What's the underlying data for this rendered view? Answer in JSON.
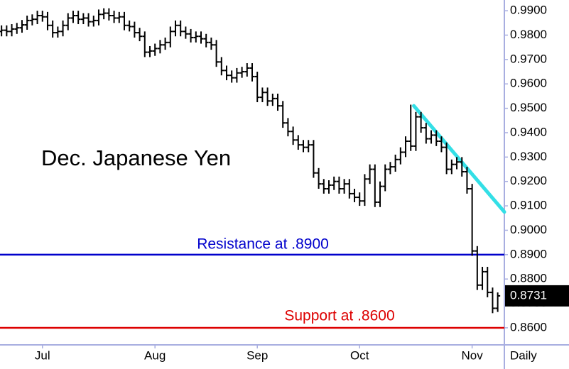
{
  "chart_data": {
    "type": "ohlc",
    "title": "Dec. Japanese Yen",
    "color": "#000000",
    "x": [
      0,
      1,
      2,
      3,
      4,
      5,
      6,
      7,
      8,
      9,
      10,
      11,
      12,
      13,
      14,
      15,
      16,
      17,
      18,
      19,
      20,
      21,
      22,
      23,
      24,
      25,
      26,
      27,
      28,
      29,
      30,
      31,
      32,
      33,
      34,
      35,
      36,
      37,
      38,
      39,
      40,
      41,
      42,
      43,
      44,
      45,
      46,
      47,
      48,
      49,
      50,
      51,
      52,
      53,
      54,
      55,
      56,
      57,
      58,
      59,
      60,
      61,
      62,
      63,
      64,
      65,
      66,
      67,
      68,
      69,
      70,
      71,
      72,
      73,
      74,
      75,
      76,
      77,
      78,
      79,
      80,
      81,
      82,
      83,
      84,
      85,
      86,
      87,
      88,
      89,
      90,
      91,
      92,
      93,
      94,
      95,
      96,
      97
    ],
    "open": [
      0.9815,
      0.982,
      0.9815,
      0.9825,
      0.983,
      0.9842,
      0.986,
      0.9865,
      0.988,
      0.9875,
      0.984,
      0.981,
      0.9815,
      0.984,
      0.987,
      0.988,
      0.9865,
      0.987,
      0.9855,
      0.986,
      0.9885,
      0.989,
      0.988,
      0.987,
      0.9875,
      0.984,
      0.9835,
      0.981,
      0.9795,
      0.973,
      0.9735,
      0.9745,
      0.976,
      0.977,
      0.9815,
      0.984,
      0.9815,
      0.9805,
      0.979,
      0.9795,
      0.9785,
      0.977,
      0.976,
      0.969,
      0.9655,
      0.9635,
      0.9625,
      0.9645,
      0.965,
      0.9665,
      0.963,
      0.9545,
      0.9565,
      0.953,
      0.954,
      0.951,
      0.944,
      0.9405,
      0.937,
      0.935,
      0.934,
      0.935,
      0.9235,
      0.919,
      0.917,
      0.9185,
      0.92,
      0.917,
      0.919,
      0.915,
      0.9135,
      0.912,
      0.921,
      0.925,
      0.9115,
      0.918,
      0.925,
      0.926,
      0.929,
      0.932,
      0.9365,
      0.9345,
      0.9465,
      0.942,
      0.9375,
      0.939,
      0.9365,
      0.934,
      0.925,
      0.927,
      0.928,
      0.924,
      0.917,
      0.8915,
      0.8775,
      0.883,
      0.8745,
      0.868
    ],
    "high": [
      0.984,
      0.984,
      0.9845,
      0.985,
      0.9862,
      0.988,
      0.9885,
      0.99,
      0.99,
      0.9895,
      0.986,
      0.9835,
      0.986,
      0.989,
      0.99,
      0.99,
      0.989,
      0.989,
      0.988,
      0.9905,
      0.991,
      0.991,
      0.99,
      0.9895,
      0.9895,
      0.986,
      0.9855,
      0.983,
      0.9815,
      0.9755,
      0.9765,
      0.978,
      0.979,
      0.9835,
      0.986,
      0.986,
      0.9835,
      0.9825,
      0.9815,
      0.9815,
      0.9805,
      0.979,
      0.978,
      0.971,
      0.9675,
      0.9655,
      0.9665,
      0.967,
      0.9685,
      0.9685,
      0.965,
      0.9585,
      0.9585,
      0.956,
      0.956,
      0.953,
      0.946,
      0.9425,
      0.939,
      0.937,
      0.937,
      0.937,
      0.9255,
      0.921,
      0.9205,
      0.922,
      0.922,
      0.921,
      0.921,
      0.917,
      0.9155,
      0.923,
      0.927,
      0.927,
      0.92,
      0.927,
      0.928,
      0.931,
      0.934,
      0.9385,
      0.9515,
      0.9485,
      0.9485,
      0.944,
      0.941,
      0.941,
      0.9385,
      0.936,
      0.929,
      0.93,
      0.93,
      0.926,
      0.919,
      0.8935,
      0.885,
      0.885,
      0.8765,
      0.8745
    ],
    "low": [
      0.9795,
      0.9795,
      0.9795,
      0.9805,
      0.981,
      0.9822,
      0.984,
      0.9845,
      0.9855,
      0.982,
      0.979,
      0.979,
      0.9795,
      0.982,
      0.985,
      0.9845,
      0.9845,
      0.9835,
      0.9835,
      0.984,
      0.9865,
      0.986,
      0.985,
      0.985,
      0.982,
      0.9815,
      0.979,
      0.9775,
      0.971,
      0.971,
      0.9715,
      0.9725,
      0.974,
      0.975,
      0.9795,
      0.9795,
      0.9785,
      0.977,
      0.977,
      0.9765,
      0.975,
      0.974,
      0.967,
      0.9635,
      0.9615,
      0.9605,
      0.9605,
      0.9625,
      0.963,
      0.961,
      0.9525,
      0.9525,
      0.951,
      0.951,
      0.949,
      0.942,
      0.9385,
      0.935,
      0.933,
      0.932,
      0.932,
      0.9215,
      0.917,
      0.915,
      0.915,
      0.9165,
      0.915,
      0.915,
      0.913,
      0.9115,
      0.91,
      0.91,
      0.919,
      0.9095,
      0.9095,
      0.916,
      0.923,
      0.924,
      0.927,
      0.93,
      0.9325,
      0.9325,
      0.94,
      0.9355,
      0.9355,
      0.9345,
      0.932,
      0.923,
      0.923,
      0.925,
      0.922,
      0.915,
      0.8895,
      0.8755,
      0.8755,
      0.8725,
      0.866,
      0.8665
    ],
    "close": [
      0.982,
      0.9815,
      0.9825,
      0.983,
      0.9842,
      0.986,
      0.9865,
      0.988,
      0.9875,
      0.984,
      0.981,
      0.9815,
      0.984,
      0.987,
      0.988,
      0.9865,
      0.987,
      0.9855,
      0.986,
      0.9885,
      0.989,
      0.988,
      0.987,
      0.9875,
      0.984,
      0.9835,
      0.981,
      0.9795,
      0.973,
      0.9735,
      0.9745,
      0.976,
      0.977,
      0.9815,
      0.984,
      0.9815,
      0.9805,
      0.979,
      0.9795,
      0.9785,
      0.977,
      0.976,
      0.969,
      0.9655,
      0.9635,
      0.9625,
      0.9645,
      0.965,
      0.9665,
      0.963,
      0.9545,
      0.9565,
      0.953,
      0.954,
      0.951,
      0.944,
      0.9405,
      0.937,
      0.935,
      0.934,
      0.935,
      0.9235,
      0.919,
      0.917,
      0.9185,
      0.92,
      0.917,
      0.919,
      0.915,
      0.9135,
      0.912,
      0.921,
      0.925,
      0.9115,
      0.918,
      0.925,
      0.926,
      0.929,
      0.932,
      0.9365,
      0.9345,
      0.9465,
      0.942,
      0.9375,
      0.939,
      0.9365,
      0.934,
      0.925,
      0.927,
      0.928,
      0.924,
      0.917,
      0.8915,
      0.8775,
      0.883,
      0.8745,
      0.868,
      0.8731
    ],
    "xlim": [
      -0.3,
      98.3
    ],
    "xticks": [
      {
        "value": 8,
        "label": "Jul"
      },
      {
        "value": 30,
        "label": "Aug"
      },
      {
        "value": 50,
        "label": "Sep"
      },
      {
        "value": 70,
        "label": "Oct"
      },
      {
        "value": 92,
        "label": "Nov"
      }
    ],
    "ylim": [
      0.853,
      0.9944
    ],
    "yticks": [
      {
        "value": 0.86,
        "label": "0.8600"
      },
      {
        "value": 0.87,
        "label": "0.8700"
      },
      {
        "value": 0.88,
        "label": "0.8800"
      },
      {
        "value": 0.89,
        "label": "0.8900"
      },
      {
        "value": 0.9,
        "label": "0.9000"
      },
      {
        "value": 0.91,
        "label": "0.9100"
      },
      {
        "value": 0.92,
        "label": "0.9200"
      },
      {
        "value": 0.93,
        "label": "0.9300"
      },
      {
        "value": 0.94,
        "label": "0.9400"
      },
      {
        "value": 0.95,
        "label": "0.9500"
      },
      {
        "value": 0.96,
        "label": "0.9600"
      },
      {
        "value": 0.97,
        "label": "0.9700"
      },
      {
        "value": 0.98,
        "label": "0.9800"
      },
      {
        "value": 0.99,
        "label": "0.9900"
      }
    ],
    "frequency_label": "Daily",
    "last_price": {
      "value": 0.8731,
      "label": "0.8731"
    },
    "lines": [
      {
        "name": "Resistance at .8900",
        "value": 0.89,
        "color": "#0000cc"
      },
      {
        "name": "Support at .8600",
        "value": 0.86,
        "color": "#dd0000"
      }
    ],
    "trendline": {
      "x": [
        80.6,
        98.3
      ],
      "y": [
        0.951,
        0.9075
      ],
      "color": "#33dfe6"
    }
  }
}
